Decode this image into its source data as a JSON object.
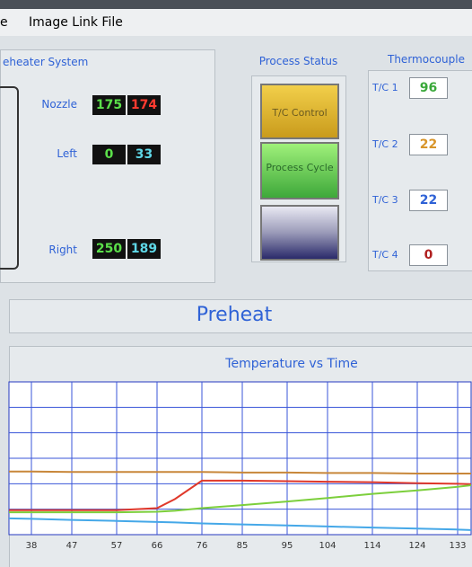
{
  "menu": {
    "items": [
      "e",
      "Image Link File"
    ]
  },
  "preheater": {
    "title": "eheater System",
    "rows": [
      {
        "label": "Nozzle",
        "values": [
          175,
          174
        ]
      },
      {
        "label": "Left",
        "values": [
          0,
          33
        ]
      },
      {
        "label": "Right",
        "values": [
          250,
          189
        ]
      }
    ]
  },
  "process_status": {
    "title": "Process Status",
    "buttons": [
      "T/C Control",
      "Process Cycle"
    ]
  },
  "thermocouple": {
    "title": "Thermocouple",
    "rows": [
      {
        "label": "T/C 1",
        "value": 96
      },
      {
        "label": "T/C 2",
        "value": 22
      },
      {
        "label": "T/C 3",
        "value": 22
      },
      {
        "label": "T/C 4",
        "value": 0
      }
    ]
  },
  "status": {
    "text": "Preheat"
  },
  "chart_data": {
    "type": "line",
    "title": "Temperature vs Time",
    "x": [
      33,
      38,
      47,
      57,
      66,
      70,
      76,
      85,
      95,
      104,
      114,
      124,
      133,
      136
    ],
    "xlim": [
      33,
      136
    ],
    "xticks": [
      38,
      47,
      57,
      66,
      76,
      85,
      95,
      104,
      114,
      124,
      133
    ],
    "ylim": [
      0,
      300
    ],
    "grid": true,
    "series": [
      {
        "color": "#c8873a",
        "values": [
          124,
          124,
          123,
          123,
          123,
          123,
          123,
          122,
          122,
          121,
          121,
          120,
          120,
          120
        ]
      },
      {
        "color": "#e0382a",
        "values": [
          48,
          48,
          48,
          48,
          52,
          70,
          106,
          106,
          105,
          104,
          103,
          101,
          100,
          99
        ]
      },
      {
        "color": "#7ccf3c",
        "values": [
          44,
          44,
          44,
          44,
          45,
          47,
          52,
          58,
          65,
          72,
          80,
          87,
          94,
          97
        ]
      },
      {
        "color": "#45a8e8",
        "values": [
          32,
          31,
          29,
          27,
          25,
          24,
          22,
          20,
          18,
          16,
          14,
          12,
          10,
          9
        ]
      }
    ]
  }
}
